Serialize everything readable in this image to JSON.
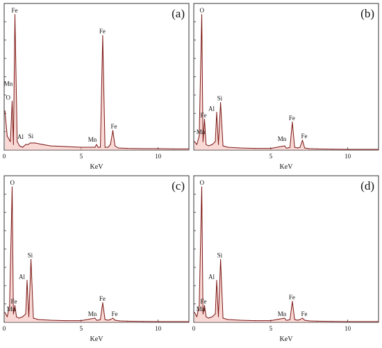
{
  "figure": {
    "background": "#ffffff"
  },
  "chart_data": [
    {
      "type": "line",
      "panel_label": "(a)",
      "xlabel": "KeV",
      "xlim": [
        0,
        12
      ],
      "xticks": [
        0,
        5,
        10
      ],
      "ylim": [
        0,
        100
      ],
      "color_line": "#7a1512",
      "color_fill": "#f2b9b4",
      "series": [
        {
          "x": [
            0.05,
            0.2,
            0.4,
            0.52,
            0.6,
            0.7,
            0.85,
            1.0,
            1.2,
            1.4,
            1.55,
            1.7,
            2.0,
            2.5,
            3.0,
            4.0,
            5.0,
            5.9,
            6.0,
            6.1,
            6.25,
            6.4,
            6.55,
            6.75,
            6.9,
            7.06,
            7.2,
            7.4,
            8.0,
            9.0,
            10.0,
            11.0,
            12.0
          ],
          "values": [
            28,
            10,
            6,
            35,
            4,
            97,
            6,
            3,
            2,
            4,
            4,
            5,
            5,
            4,
            3,
            2.5,
            2,
            2,
            4,
            2,
            2,
            82,
            2,
            2,
            4,
            14,
            3,
            1.5,
            1.2,
            1,
            1,
            0.8,
            0.8
          ]
        }
      ],
      "peaks": [
        {
          "label": "Fe",
          "x": 0.7,
          "y": 97
        },
        {
          "label": "Mn",
          "x": 0.62,
          "y": 45
        },
        {
          "label": "O",
          "x": 0.52,
          "y": 35
        },
        {
          "label": "Al",
          "x": 1.49,
          "y": 7
        },
        {
          "label": "Si",
          "x": 1.74,
          "y": 8
        },
        {
          "label": "Fe",
          "x": 6.4,
          "y": 82
        },
        {
          "label": "Mn",
          "x": 5.9,
          "y": 5
        },
        {
          "label": "Fe",
          "x": 7.06,
          "y": 14
        }
      ]
    },
    {
      "type": "line",
      "panel_label": "(b)",
      "xlabel": "KeV",
      "xlim": [
        0,
        12
      ],
      "xticks": [
        5,
        10
      ],
      "ylim": [
        0,
        100
      ],
      "color_line": "#7a1512",
      "color_fill": "#f2b9b4",
      "series": [
        {
          "x": [
            0.05,
            0.2,
            0.35,
            0.52,
            0.6,
            0.7,
            0.8,
            0.95,
            1.2,
            1.4,
            1.49,
            1.6,
            1.74,
            1.9,
            2.2,
            3.0,
            4.0,
            5.0,
            5.9,
            6.0,
            6.1,
            6.25,
            6.4,
            6.55,
            6.75,
            6.9,
            7.06,
            7.2,
            7.5,
            8.0,
            9.0,
            10.0,
            12.0
          ],
          "values": [
            6,
            4,
            10,
            97,
            6,
            22,
            4,
            3,
            4,
            6,
            27,
            4,
            34,
            3,
            2,
            1.5,
            1.2,
            1.2,
            3,
            1.5,
            1.5,
            2,
            20,
            2,
            1.5,
            2,
            7,
            1.5,
            1,
            0.8,
            0.6,
            0.5,
            0.5
          ]
        }
      ],
      "peaks": [
        {
          "label": "O",
          "x": 0.52,
          "y": 97
        },
        {
          "label": "Mn",
          "x": 0.62,
          "y": 10
        },
        {
          "label": "Fe",
          "x": 0.7,
          "y": 22
        },
        {
          "label": "Al",
          "x": 1.49,
          "y": 27
        },
        {
          "label": "Si",
          "x": 1.74,
          "y": 34
        },
        {
          "label": "Mn",
          "x": 5.9,
          "y": 5
        },
        {
          "label": "Fe",
          "x": 6.4,
          "y": 20
        },
        {
          "label": "Fe",
          "x": 7.06,
          "y": 7
        }
      ]
    },
    {
      "type": "line",
      "panel_label": "(c)",
      "xlabel": "KeV",
      "xlim": [
        0,
        12
      ],
      "xticks": [
        0,
        5,
        10
      ],
      "ylim": [
        0,
        100
      ],
      "color_line": "#7a1512",
      "color_fill": "#f2b9b4",
      "series": [
        {
          "x": [
            0.05,
            0.2,
            0.35,
            0.52,
            0.6,
            0.7,
            0.8,
            0.95,
            1.2,
            1.4,
            1.49,
            1.6,
            1.74,
            1.9,
            2.2,
            3.0,
            4.0,
            5.0,
            5.9,
            6.0,
            6.1,
            6.25,
            6.4,
            6.55,
            6.75,
            6.9,
            7.06,
            7.2,
            7.5,
            8.0,
            9.0,
            10.0,
            12.0
          ],
          "values": [
            7,
            4,
            12,
            97,
            6,
            12,
            4,
            3,
            4,
            6,
            30,
            4,
            45,
            3,
            2,
            1.5,
            1.2,
            1.2,
            3,
            1.5,
            1.5,
            2,
            14,
            2,
            1.5,
            2,
            3,
            1.5,
            1,
            0.8,
            0.6,
            0.5,
            0.5
          ]
        }
      ],
      "peaks": [
        {
          "label": "O",
          "x": 0.52,
          "y": 97
        },
        {
          "label": "Mn",
          "x": 0.62,
          "y": 7
        },
        {
          "label": "Fe",
          "x": 0.7,
          "y": 12
        },
        {
          "label": "Al",
          "x": 1.49,
          "y": 30
        },
        {
          "label": "Si",
          "x": 1.74,
          "y": 45
        },
        {
          "label": "Mn",
          "x": 5.9,
          "y": 3
        },
        {
          "label": "Fe",
          "x": 6.4,
          "y": 14
        },
        {
          "label": "Fe",
          "x": 7.06,
          "y": 3
        }
      ]
    },
    {
      "type": "line",
      "panel_label": "(d)",
      "xlabel": "KeV",
      "xlim": [
        0,
        12
      ],
      "xticks": [
        0,
        5,
        10
      ],
      "ylim": [
        0,
        100
      ],
      "color_line": "#7a1512",
      "color_fill": "#f2b9b4",
      "series": [
        {
          "x": [
            0.05,
            0.2,
            0.35,
            0.52,
            0.6,
            0.7,
            0.8,
            0.95,
            1.2,
            1.4,
            1.49,
            1.6,
            1.74,
            1.9,
            2.2,
            3.0,
            4.0,
            5.0,
            5.9,
            6.0,
            6.1,
            6.25,
            6.4,
            6.55,
            6.75,
            6.9,
            7.06,
            7.2,
            7.5,
            8.0,
            9.0,
            10.0,
            12.0
          ],
          "values": [
            7,
            4,
            12,
            97,
            6,
            12,
            4,
            3,
            4,
            6,
            30,
            4,
            45,
            3,
            2,
            1.5,
            1.2,
            1.2,
            3,
            1.5,
            1.5,
            2,
            15,
            2,
            1.5,
            2,
            3,
            1.5,
            1,
            0.8,
            0.6,
            0.5,
            0.5
          ]
        }
      ],
      "peaks": [
        {
          "label": "O",
          "x": 0.52,
          "y": 97
        },
        {
          "label": "Mn",
          "x": 0.62,
          "y": 7
        },
        {
          "label": "Fe",
          "x": 0.7,
          "y": 12
        },
        {
          "label": "Al",
          "x": 1.49,
          "y": 30
        },
        {
          "label": "Si",
          "x": 1.74,
          "y": 45
        },
        {
          "label": "Mn",
          "x": 5.9,
          "y": 3
        },
        {
          "label": "Fe",
          "x": 6.4,
          "y": 15
        },
        {
          "label": "Fe",
          "x": 7.06,
          "y": 3
        }
      ]
    }
  ]
}
